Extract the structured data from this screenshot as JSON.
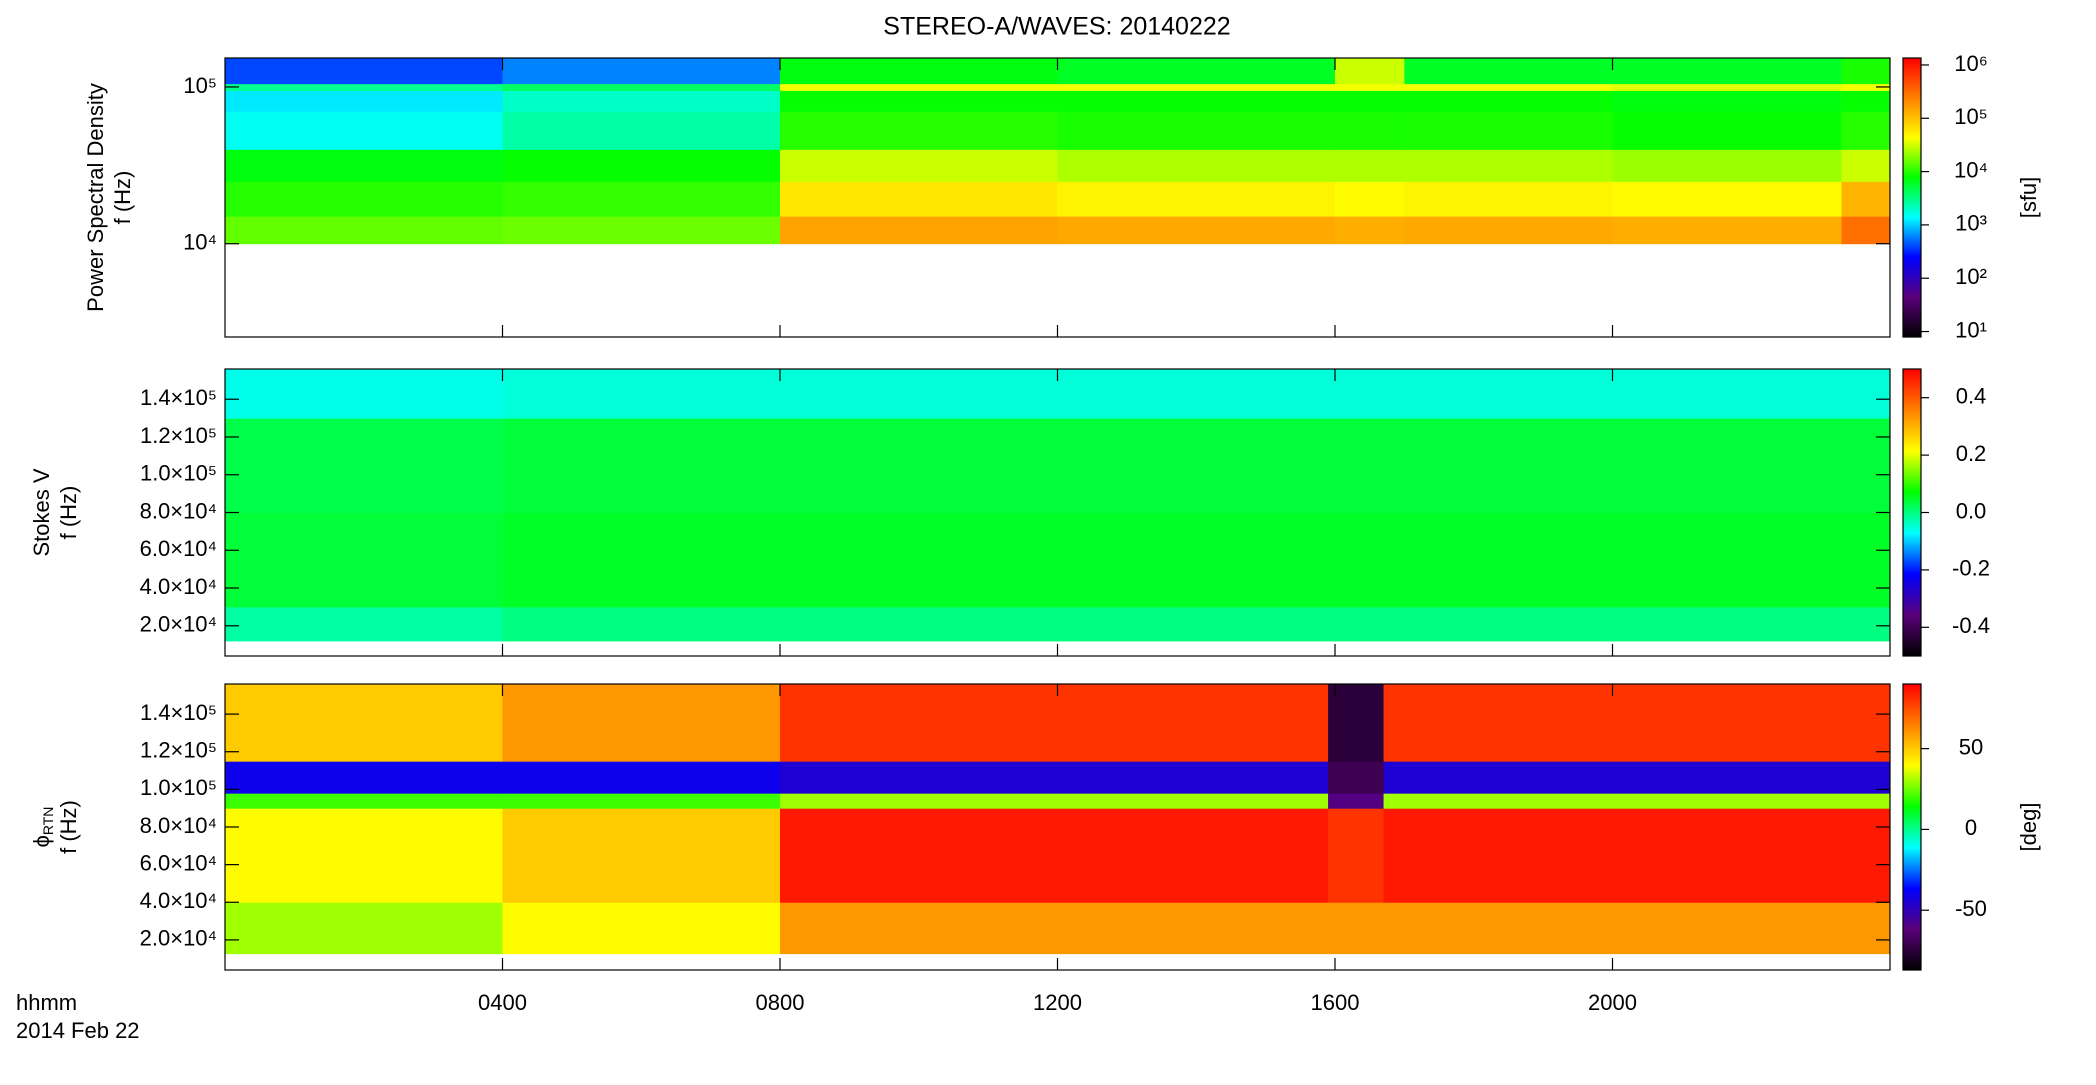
{
  "chart_data": {
    "type": "heatmap-stack",
    "title": "STEREO-A/WAVES: 20140222",
    "xlabel": [
      "hhmm",
      "2014 Feb 22"
    ],
    "xlim": [
      0,
      24
    ],
    "xticks": [
      {
        "value": 4,
        "label": "0400"
      },
      {
        "value": 8,
        "label": "0800"
      },
      {
        "value": 12,
        "label": "1200"
      },
      {
        "value": 16,
        "label": "1600"
      },
      {
        "value": 20,
        "label": "2000"
      }
    ],
    "colormap": [
      "#000000",
      "#5a007a",
      "#0000ff",
      "#00ffff",
      "#00ff00",
      "#ffff00",
      "#ff8000",
      "#ff0000"
    ],
    "panels": [
      {
        "type": "heatmap",
        "ylabel": [
          "Power Spectral Density",
          "f (Hz)"
        ],
        "ylog": true,
        "ylim": [
          2540,
          153000
        ],
        "yticks": [
          {
            "value": 10000,
            "label": "10⁴"
          },
          {
            "value": 100000,
            "label": "10⁵"
          }
        ],
        "zlog": true,
        "zlim": [
          7.9,
          1350000
        ],
        "zticks": [
          {
            "value": 10,
            "label": "10¹"
          },
          {
            "value": 100,
            "label": "10²"
          },
          {
            "value": 1000,
            "label": "10³"
          },
          {
            "value": 10000,
            "label": "10⁴"
          },
          {
            "value": 100000,
            "label": "10⁵"
          },
          {
            "value": 1000000,
            "label": "10⁶"
          }
        ],
        "zlabel": "[sfu]",
        "x_edges": [
          0,
          4,
          8,
          12,
          16,
          17,
          20,
          23.3,
          24
        ],
        "y_edges": [
          10000,
          15000,
          25000,
          40000,
          70000,
          95000,
          105000,
          153000
        ],
        "values": [
          [
            15000,
            16000,
            150000,
            140000,
            130000,
            140000,
            130000,
            300000
          ],
          [
            10000,
            11000,
            60000,
            50000,
            45000,
            50000,
            45000,
            120000
          ],
          [
            7000,
            8000,
            30000,
            25000,
            25000,
            25000,
            22000,
            30000
          ],
          [
            1500,
            2500,
            10000,
            9000,
            9000,
            9000,
            8000,
            10000
          ],
          [
            1200,
            2000,
            8000,
            8000,
            8000,
            8000,
            7000,
            8000
          ],
          [
            3000,
            4000,
            40000,
            40000,
            40000,
            40000,
            35000,
            40000
          ],
          [
            400,
            600,
            7000,
            6000,
            30000,
            6000,
            6000,
            9000
          ]
        ]
      },
      {
        "type": "heatmap",
        "ylabel": [
          "Stokes V",
          "f (Hz)"
        ],
        "ylog": false,
        "ylim": [
          4000,
          156000
        ],
        "yticks": [
          {
            "value": 20000,
            "label": "2.0×10⁴"
          },
          {
            "value": 40000,
            "label": "4.0×10⁴"
          },
          {
            "value": 60000,
            "label": "6.0×10⁴"
          },
          {
            "value": 80000,
            "label": "8.0×10⁴"
          },
          {
            "value": 100000,
            "label": "1.0×10⁵"
          },
          {
            "value": 120000,
            "label": "1.2×10⁵"
          },
          {
            "value": 140000,
            "label": "1.4×10⁵"
          }
        ],
        "zlog": false,
        "zlim": [
          -0.5,
          0.5
        ],
        "zticks": [
          -0.4,
          -0.2,
          {
            "value": 0,
            "label": "0.0"
          },
          0.2,
          0.4
        ],
        "x_edges": [
          0,
          4,
          8,
          12,
          16,
          20,
          24
        ],
        "y_edges": [
          12000,
          30000,
          80000,
          130000,
          156000
        ],
        "values": [
          [
            -0.02,
            0.0,
            0.0,
            0.0,
            0.0,
            0.0
          ],
          [
            0.04,
            0.05,
            0.05,
            0.05,
            0.05,
            0.05
          ],
          [
            0.03,
            0.04,
            0.04,
            0.04,
            0.04,
            0.04
          ],
          [
            -0.06,
            -0.05,
            -0.05,
            -0.05,
            -0.05,
            -0.05
          ]
        ]
      },
      {
        "type": "heatmap",
        "ylabel": [
          "ϕ",
          "f (Hz)"
        ],
        "ylabel_sub": "RTN",
        "ylog": false,
        "ylim": [
          4000,
          156000
        ],
        "yticks": [
          {
            "value": 20000,
            "label": "2.0×10⁴"
          },
          {
            "value": 40000,
            "label": "4.0×10⁴"
          },
          {
            "value": 60000,
            "label": "6.0×10⁴"
          },
          {
            "value": 80000,
            "label": "8.0×10⁴"
          },
          {
            "value": 100000,
            "label": "1.0×10⁵"
          },
          {
            "value": 120000,
            "label": "1.2×10⁵"
          },
          {
            "value": 140000,
            "label": "1.4×10⁵"
          }
        ],
        "zlog": false,
        "zlim": [
          -87,
          90
        ],
        "zticks": [
          -50,
          0,
          50
        ],
        "zlabel": "[deg]",
        "x_edges": [
          0,
          4,
          8,
          15.9,
          16.7,
          24
        ],
        "y_edges": [
          12700,
          40000,
          90000,
          98000,
          115000,
          156000
        ],
        "values": [
          [
            30,
            40,
            60,
            60,
            60
          ],
          [
            40,
            50,
            85,
            80,
            85
          ],
          [
            20,
            20,
            30,
            -60,
            30
          ],
          [
            -40,
            -40,
            -45,
            -70,
            -45
          ],
          [
            50,
            60,
            80,
            -75,
            80
          ]
        ]
      }
    ]
  }
}
